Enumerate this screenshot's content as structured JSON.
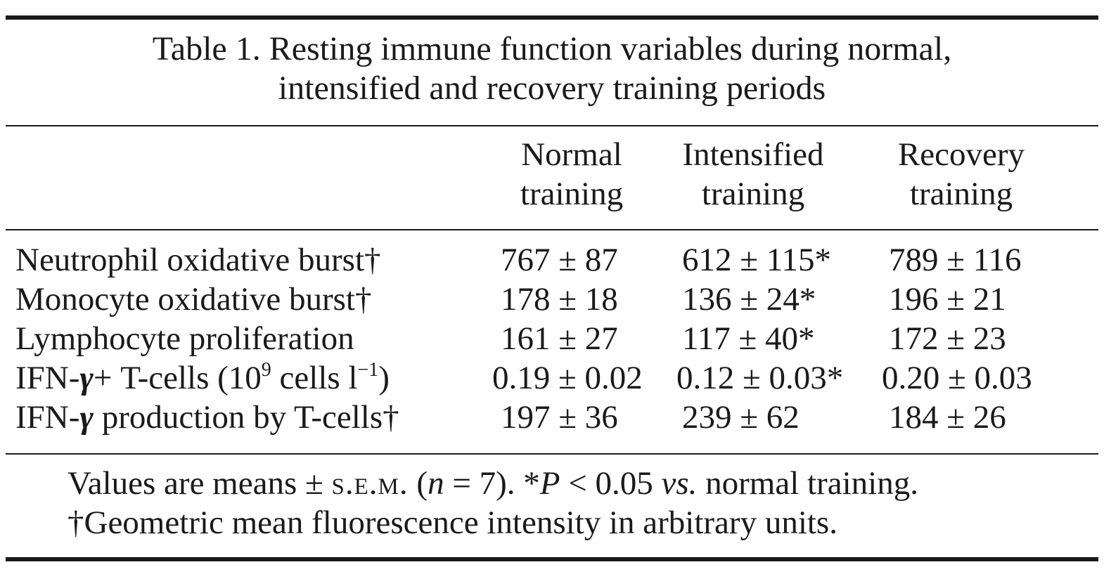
{
  "caption": {
    "line1": "Table 1. Resting immune function variables during normal,",
    "line2": "intensified and recovery training periods"
  },
  "columns": [
    {
      "line1": "Normal",
      "line2": "training"
    },
    {
      "line1": "Intensified",
      "line2": "training"
    },
    {
      "line1": "Recovery",
      "line2": "training"
    }
  ],
  "rows": [
    {
      "label": "Neutrophil oxidative burst†",
      "values": [
        "767 ± 87",
        "612 ± 115*",
        "789 ± 116"
      ]
    },
    {
      "label": "Monocyte oxidative burst†",
      "values": [
        "178 ± 18",
        "136 ± 24*",
        "196 ± 21"
      ]
    },
    {
      "label": "Lymphocyte proliferation",
      "values": [
        "161 ± 27",
        "117 ± 40*",
        "172 ± 23"
      ]
    },
    {
      "label_pre": "IFN-",
      "label_greek": "γ",
      "label_mid": "+ T-cells (10",
      "label_sup1": "9",
      "label_mid2": " cells l",
      "label_sup2": "−1",
      "label_post": ")",
      "values": [
        "0.19 ± 0.02",
        "0.12 ± 0.03*",
        "0.20 ± 0.03"
      ]
    },
    {
      "label_pre": "IFN-",
      "label_greek": "γ",
      "label_post": " production by T-cells†",
      "values": [
        "197 ± 36",
        "239 ± 62",
        "184 ± 26"
      ]
    }
  ],
  "footnote": {
    "l1_a": "Values are means ± ",
    "l1_sem": "s.e.m.",
    "l1_b": " (",
    "l1_n": "n",
    "l1_c": " = 7). *",
    "l1_p": "P",
    "l1_d": " < 0.05 ",
    "l1_vs": "vs.",
    "l1_e": " normal training.",
    "line2": "†Geometric mean fluorescence intensity in arbitrary units."
  }
}
